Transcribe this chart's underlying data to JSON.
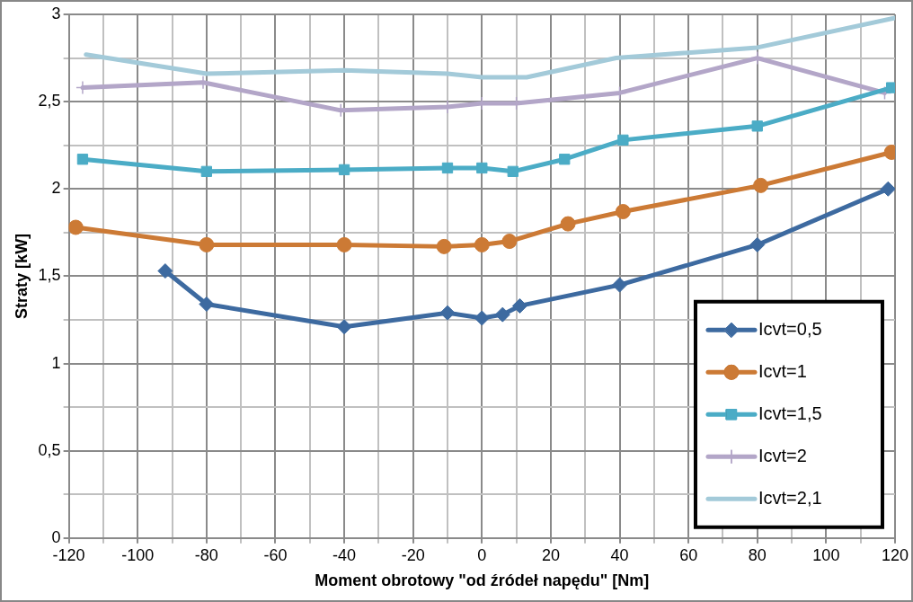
{
  "chart_data": {
    "type": "line",
    "xlabel": "Moment obrotowy \"od źródeł napędu\" [Nm]",
    "ylabel": "Straty [kW]",
    "xlim": [
      -120,
      120
    ],
    "xticks": [
      -120,
      {
        "value": -110,
        "label": null
      },
      -100,
      {
        "value": -90,
        "label": null
      },
      -80,
      {
        "value": -70,
        "label": null
      },
      -60,
      {
        "value": -50,
        "label": null
      },
      -40,
      {
        "value": -30,
        "label": null
      },
      -20,
      {
        "value": -10,
        "label": null
      },
      0,
      {
        "value": 10,
        "label": null
      },
      20,
      {
        "value": 30,
        "label": null
      },
      40,
      {
        "value": 50,
        "label": null
      },
      60,
      {
        "value": 70,
        "label": null
      },
      80,
      {
        "value": 90,
        "label": null
      },
      100,
      {
        "value": 110,
        "label": null
      },
      120
    ],
    "ylim": [
      0,
      3
    ],
    "yticks": [
      0,
      {
        "value": 0.25,
        "label": null
      },
      {
        "value": 0.5,
        "label": "0,5"
      },
      {
        "value": 0.75,
        "label": null
      },
      1,
      {
        "value": 1.25,
        "label": null
      },
      {
        "value": 1.5,
        "label": "1,5"
      },
      {
        "value": 1.75,
        "label": null
      },
      2,
      {
        "value": 2.25,
        "label": null
      },
      {
        "value": 2.5,
        "label": "2,5"
      },
      {
        "value": 2.75,
        "label": null
      },
      3
    ],
    "grid": true,
    "legend": "bottom right",
    "line_style": "solid",
    "series": [
      {
        "name": "Icvt=0,5",
        "color": "#3d6aa0",
        "marker": "diamond",
        "x": [
          -92,
          -80,
          -40,
          -10,
          0,
          6,
          11,
          40,
          80,
          118
        ],
        "values": [
          1.53,
          1.34,
          1.21,
          1.29,
          1.26,
          1.28,
          1.33,
          1.45,
          1.68,
          2.0
        ]
      },
      {
        "name": "Icvt=1",
        "color": "#cc7a35",
        "marker": "circle",
        "x": [
          -118,
          -80,
          -40,
          -11,
          0,
          8,
          25,
          41,
          81,
          119
        ],
        "values": [
          1.78,
          1.68,
          1.68,
          1.67,
          1.68,
          1.7,
          1.8,
          1.87,
          2.02,
          2.21
        ]
      },
      {
        "name": "Icvt=1,5",
        "color": "#4bacc6",
        "marker": "square",
        "x": [
          -116,
          -80,
          -40,
          -10,
          0,
          9,
          24,
          41,
          80,
          119
        ],
        "values": [
          2.17,
          2.1,
          2.11,
          2.12,
          2.12,
          2.1,
          2.17,
          2.28,
          2.36,
          2.58
        ]
      },
      {
        "name": "Icvt=2",
        "color": "#b3a6c8",
        "marker": "cross",
        "x": [
          -116,
          -81,
          -41,
          -10,
          0,
          10,
          40,
          80,
          117
        ],
        "values": [
          2.58,
          2.61,
          2.45,
          2.47,
          2.49,
          2.49,
          2.55,
          2.75,
          2.55
        ]
      },
      {
        "name": "Icvt=2,1",
        "color": "#a3cad9",
        "marker": "none",
        "x": [
          -115,
          -80,
          -40,
          -10,
          0,
          13,
          39,
          80,
          120
        ],
        "values": [
          2.77,
          2.66,
          2.68,
          2.66,
          2.64,
          2.64,
          2.75,
          2.81,
          2.98
        ]
      }
    ]
  }
}
